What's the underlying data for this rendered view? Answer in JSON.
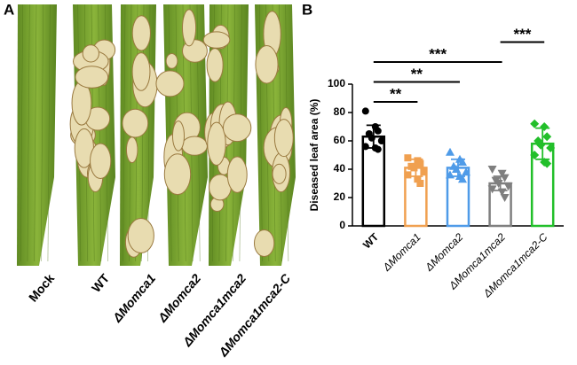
{
  "panels": {
    "a": "A",
    "b": "B"
  },
  "leaves": [
    "Mock",
    "WT",
    "ΔMomca1",
    "ΔMomca2",
    "ΔMomca1mca2",
    "ΔMomca1mca2-C"
  ],
  "chart_data": {
    "type": "bar",
    "ylabel": "Diseased leaf area (%)",
    "categories": [
      "WT",
      "ΔMomca1",
      "ΔMomca2",
      "ΔMomca1mca2",
      "ΔMomca1mca2-C"
    ],
    "values": [
      63,
      41,
      41,
      30,
      58
    ],
    "errors": [
      8,
      6,
      6,
      5,
      11
    ],
    "colors": [
      "#000000",
      "#f0a050",
      "#4f9be8",
      "#7f7f7f",
      "#22bf2a"
    ],
    "markers": [
      "circle",
      "square",
      "triangle",
      "triangle-down",
      "diamond"
    ],
    "points": [
      [
        81,
        70,
        67,
        65,
        62,
        60,
        56,
        55,
        54
      ],
      [
        48,
        46,
        44,
        42,
        41,
        38,
        36,
        33,
        30
      ],
      [
        52,
        47,
        45,
        42,
        40,
        38,
        36,
        35,
        33
      ],
      [
        40,
        37,
        34,
        32,
        30,
        28,
        26,
        24,
        20
      ],
      [
        72,
        70,
        63,
        60,
        57,
        55,
        50,
        45,
        44
      ]
    ],
    "ylim": [
      0,
      100
    ],
    "yticks": [
      0,
      20,
      40,
      60,
      80,
      100
    ],
    "comparisons": [
      {
        "from": 0,
        "to": 1,
        "label": "**"
      },
      {
        "from": 0,
        "to": 2,
        "label": "**"
      },
      {
        "from": 0,
        "to": 3,
        "label": "***"
      },
      {
        "from": 3,
        "to": 4,
        "label": "***"
      }
    ]
  }
}
